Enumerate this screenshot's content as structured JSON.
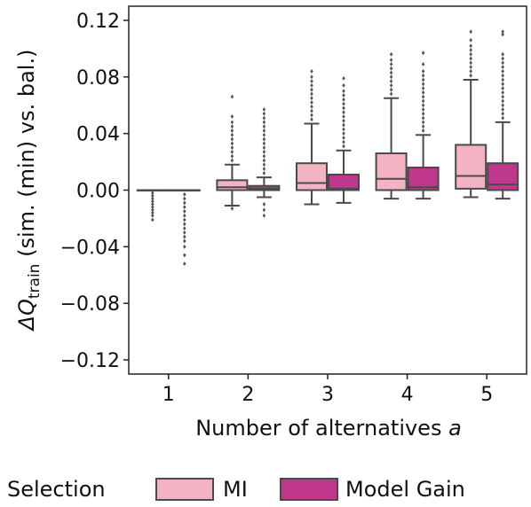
{
  "chart_data": {
    "type": "box",
    "xlabel": "Number of alternatives a",
    "ylabel": "ΔQtrain (sim. (min) vs. bal.)",
    "ylim": [
      -0.13,
      0.13
    ],
    "yticks": [
      {
        "value": 0.12,
        "label": "0.12"
      },
      {
        "value": 0.08,
        "label": "0.08"
      },
      {
        "value": 0.04,
        "label": "0.04"
      },
      {
        "value": 0.0,
        "label": "0.00"
      },
      {
        "value": -0.04,
        "label": "−0.04"
      },
      {
        "value": -0.08,
        "label": "−0.08"
      },
      {
        "value": -0.12,
        "label": "−0.12"
      }
    ],
    "categories": [
      "1",
      "2",
      "3",
      "4",
      "5"
    ],
    "legend": {
      "title": "Selection",
      "placement": "bottom"
    },
    "series": [
      {
        "name": "MI",
        "color": "#f4b3c2",
        "boxes": [
          {
            "category": "1",
            "q1": 0.0,
            "median": 0.0,
            "q3": 0.0,
            "whisker_low": 0.0,
            "whisker_high": 0.0,
            "outliers": [
              -0.002,
              -0.004,
              -0.006,
              -0.008,
              -0.01,
              -0.012,
              -0.014,
              -0.016,
              -0.018,
              -0.021
            ]
          },
          {
            "category": "2",
            "q1": 0.0,
            "median": 0.002,
            "q3": 0.007,
            "whisker_low": -0.011,
            "whisker_high": 0.018,
            "outliers": [
              0.021,
              0.024,
              0.027,
              0.03,
              0.033,
              0.036,
              0.039,
              0.042,
              0.045,
              0.048,
              0.052,
              0.066,
              -0.013
            ]
          },
          {
            "category": "3",
            "q1": 0.0,
            "median": 0.005,
            "q3": 0.019,
            "whisker_low": -0.01,
            "whisker_high": 0.047,
            "outliers": [
              0.05,
              0.053,
              0.056,
              0.059,
              0.062,
              0.065,
              0.068,
              0.071,
              0.074,
              0.077,
              0.08,
              0.084
            ]
          },
          {
            "category": "4",
            "q1": 0.0,
            "median": 0.008,
            "q3": 0.026,
            "whisker_low": -0.006,
            "whisker_high": 0.065,
            "outliers": [
              0.068,
              0.071,
              0.074,
              0.077,
              0.08,
              0.083,
              0.086,
              0.089,
              0.092,
              0.096
            ]
          },
          {
            "category": "5",
            "q1": 0.001,
            "median": 0.01,
            "q3": 0.032,
            "whisker_low": -0.005,
            "whisker_high": 0.078,
            "outliers": [
              0.081,
              0.084,
              0.087,
              0.09,
              0.093,
              0.096,
              0.099,
              0.102,
              0.106,
              0.112
            ]
          }
        ]
      },
      {
        "name": "Model Gain",
        "color": "#c0388e",
        "boxes": [
          {
            "category": "1",
            "q1": 0.0,
            "median": 0.0,
            "q3": 0.0,
            "whisker_low": 0.0,
            "whisker_high": 0.0,
            "outliers": [
              -0.003,
              -0.006,
              -0.009,
              -0.012,
              -0.015,
              -0.018,
              -0.021,
              -0.024,
              -0.027,
              -0.03,
              -0.033,
              -0.036,
              -0.04,
              -0.046,
              -0.052
            ]
          },
          {
            "category": "2",
            "q1": 0.0,
            "median": 0.001,
            "q3": 0.003,
            "whisker_low": -0.005,
            "whisker_high": 0.009,
            "outliers": [
              0.012,
              0.015,
              0.018,
              0.021,
              0.024,
              0.027,
              0.03,
              0.033,
              0.036,
              0.039,
              0.042,
              0.045,
              0.048,
              0.051,
              0.054,
              0.057,
              -0.01,
              -0.014,
              -0.018
            ]
          },
          {
            "category": "3",
            "q1": 0.0,
            "median": 0.001,
            "q3": 0.011,
            "whisker_low": -0.009,
            "whisker_high": 0.028,
            "outliers": [
              0.031,
              0.034,
              0.037,
              0.04,
              0.043,
              0.046,
              0.049,
              0.052,
              0.055,
              0.058,
              0.061,
              0.064,
              0.067,
              0.07,
              0.074,
              0.079
            ]
          },
          {
            "category": "4",
            "q1": 0.0,
            "median": 0.002,
            "q3": 0.016,
            "whisker_low": -0.006,
            "whisker_high": 0.039,
            "outliers": [
              0.042,
              0.045,
              0.048,
              0.051,
              0.054,
              0.057,
              0.06,
              0.063,
              0.066,
              0.069,
              0.072,
              0.075,
              0.078,
              0.081,
              0.084,
              0.089,
              0.097
            ]
          },
          {
            "category": "5",
            "q1": 0.0,
            "median": 0.004,
            "q3": 0.019,
            "whisker_low": -0.006,
            "whisker_high": 0.048,
            "outliers": [
              0.051,
              0.054,
              0.057,
              0.06,
              0.063,
              0.066,
              0.069,
              0.072,
              0.075,
              0.078,
              0.081,
              0.084,
              0.087,
              0.09,
              0.093,
              0.096,
              0.11,
              0.112
            ]
          }
        ]
      }
    ]
  }
}
